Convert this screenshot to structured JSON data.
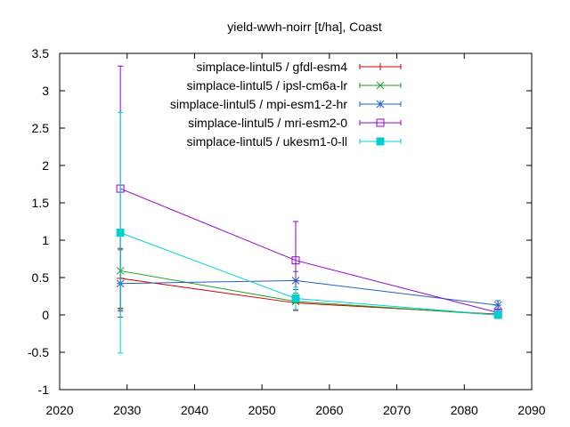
{
  "chart_data": {
    "type": "line",
    "title": "yield-wwh-noirr [t/ha], Coast",
    "xlabel": "",
    "ylabel": "",
    "xlim": [
      2020,
      2090
    ],
    "ylim": [
      -1,
      3.5
    ],
    "xticks": [
      2020,
      2030,
      2040,
      2050,
      2060,
      2070,
      2080,
      2090
    ],
    "yticks": [
      -1,
      -0.5,
      0,
      0.5,
      1,
      1.5,
      2,
      2.5,
      3,
      3.5
    ],
    "x": [
      2029,
      2055,
      2085
    ],
    "grid": false,
    "legend_position": "top-right",
    "series": [
      {
        "name": "simplace-lintul5 / gfdl-esm4",
        "color": "#cc0000",
        "marker": "plus",
        "values": [
          0.49,
          0.16,
          0.01
        ],
        "err_low": [
          0.09,
          0.06,
          0.0
        ],
        "err_high": [
          0.89,
          0.26,
          0.02
        ]
      },
      {
        "name": "simplace-lintul5 / ipsl-cm6a-lr",
        "color": "#1a9e1a",
        "marker": "x",
        "values": [
          0.59,
          0.18,
          0.0
        ],
        "err_low": [
          0.07,
          0.07,
          0.0
        ],
        "err_high": [
          1.11,
          0.29,
          0.01
        ]
      },
      {
        "name": "simplace-lintul5 / mpi-esm1-2-hr",
        "color": "#2060c0",
        "marker": "star",
        "values": [
          0.42,
          0.46,
          0.13
        ],
        "err_low": [
          -0.03,
          0.34,
          0.07
        ],
        "err_high": [
          0.87,
          0.58,
          0.19
        ]
      },
      {
        "name": "simplace-lintul5 / mri-esm2-0",
        "color": "#9400d3",
        "marker": "square-open",
        "values": [
          1.69,
          0.73,
          0.03
        ],
        "err_low": [
          0.05,
          0.21,
          0.01
        ],
        "err_high": [
          3.33,
          1.25,
          0.05
        ]
      },
      {
        "name": "simplace-lintul5 / ukesm1-0-ll",
        "color": "#00d0d0",
        "marker": "square-filled",
        "values": [
          1.1,
          0.22,
          0.0
        ],
        "err_low": [
          -0.51,
          0.07,
          0.0
        ],
        "err_high": [
          2.71,
          0.37,
          0.01
        ]
      }
    ]
  }
}
